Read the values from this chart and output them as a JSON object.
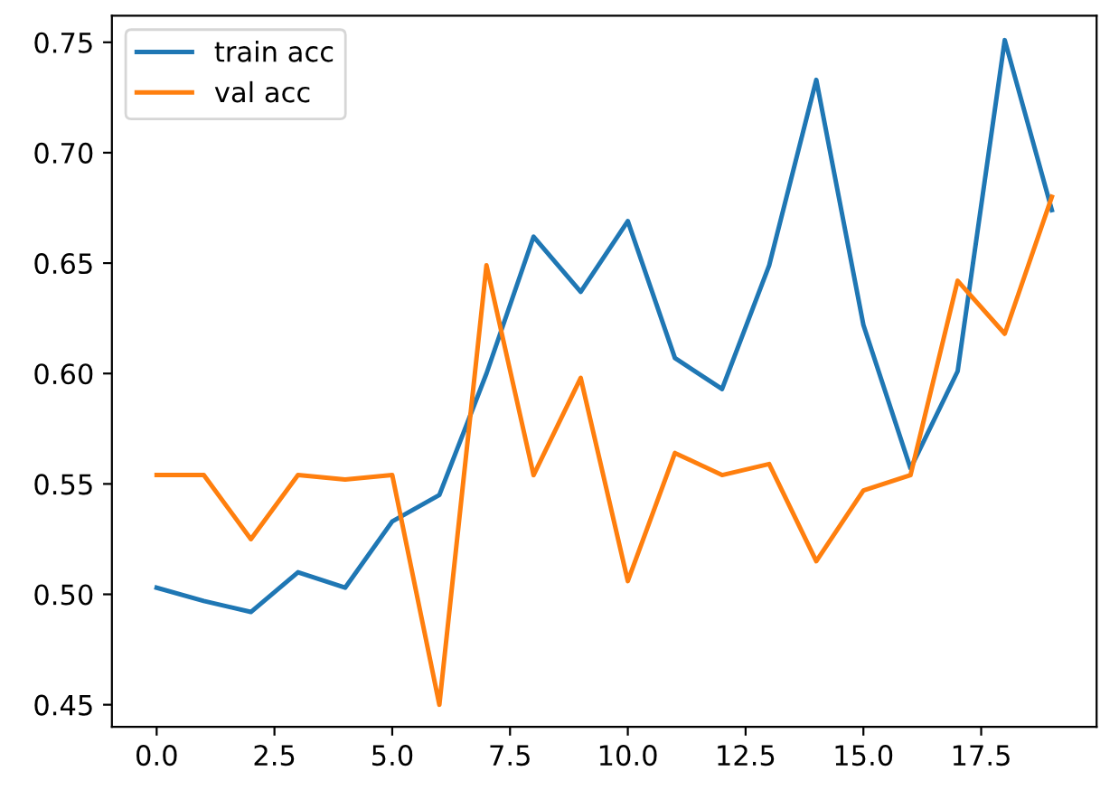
{
  "chart_data": {
    "type": "line",
    "x": [
      0,
      1,
      2,
      3,
      4,
      5,
      6,
      7,
      8,
      9,
      10,
      11,
      12,
      13,
      14,
      15,
      16,
      17,
      18,
      19
    ],
    "series": [
      {
        "name": "train acc",
        "color": "#1f77b4",
        "values": [
          0.503,
          0.497,
          0.492,
          0.51,
          0.503,
          0.533,
          0.545,
          0.6,
          0.662,
          0.637,
          0.669,
          0.607,
          0.593,
          0.649,
          0.733,
          0.622,
          0.557,
          0.601,
          0.751,
          0.674
        ]
      },
      {
        "name": "val acc",
        "color": "#ff7f0e",
        "values": [
          0.554,
          0.554,
          0.525,
          0.554,
          0.552,
          0.554,
          0.45,
          0.649,
          0.554,
          0.598,
          0.506,
          0.564,
          0.554,
          0.559,
          0.515,
          0.547,
          0.554,
          0.642,
          0.618,
          0.68
        ]
      }
    ],
    "xlim": [
      -0.95,
      19.95
    ],
    "ylim": [
      0.44,
      0.762
    ],
    "xticks": [
      {
        "value": 0,
        "label": "0.0"
      },
      2.5,
      {
        "value": 5,
        "label": "5.0"
      },
      7.5,
      {
        "value": 10,
        "label": "10.0"
      },
      12.5,
      {
        "value": 15,
        "label": "15.0"
      },
      17.5
    ],
    "yticks": [
      0.45,
      {
        "value": 0.5,
        "label": "0.50"
      },
      0.55,
      {
        "value": 0.6,
        "label": "0.60"
      },
      0.65,
      {
        "value": 0.7,
        "label": "0.70"
      },
      0.75
    ],
    "legend": "top left",
    "grid": false,
    "marker": "none",
    "line_style": "solid"
  }
}
